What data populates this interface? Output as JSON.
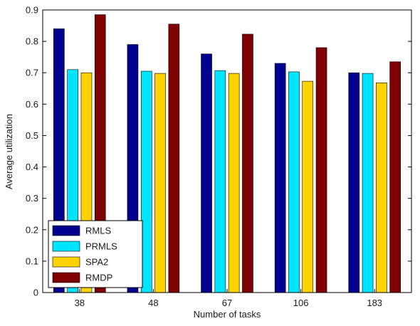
{
  "chart_data": {
    "type": "bar",
    "title": "",
    "xlabel": "Number of tasks",
    "ylabel": "Average utilization",
    "categories": [
      "38",
      "48",
      "67",
      "106",
      "183"
    ],
    "ylim": [
      0,
      0.9
    ],
    "yticks": [
      "0",
      "0.1",
      "0.2",
      "0.3",
      "0.4",
      "0.5",
      "0.6",
      "0.7",
      "0.8",
      "0.9"
    ],
    "grid": false,
    "legend_position": "bottom-left",
    "series": [
      {
        "name": "RMLS",
        "color": "#00008f",
        "values": [
          0.84,
          0.79,
          0.76,
          0.73,
          0.7
        ]
      },
      {
        "name": "PRMLS",
        "color": "#00e5ff",
        "values": [
          0.71,
          0.705,
          0.707,
          0.703,
          0.698
        ]
      },
      {
        "name": "SPA2",
        "color": "#ffd200",
        "values": [
          0.7,
          0.698,
          0.698,
          0.673,
          0.668
        ]
      },
      {
        "name": "RMDP",
        "color": "#7f0000",
        "values": [
          0.885,
          0.855,
          0.823,
          0.78,
          0.735
        ]
      }
    ]
  }
}
